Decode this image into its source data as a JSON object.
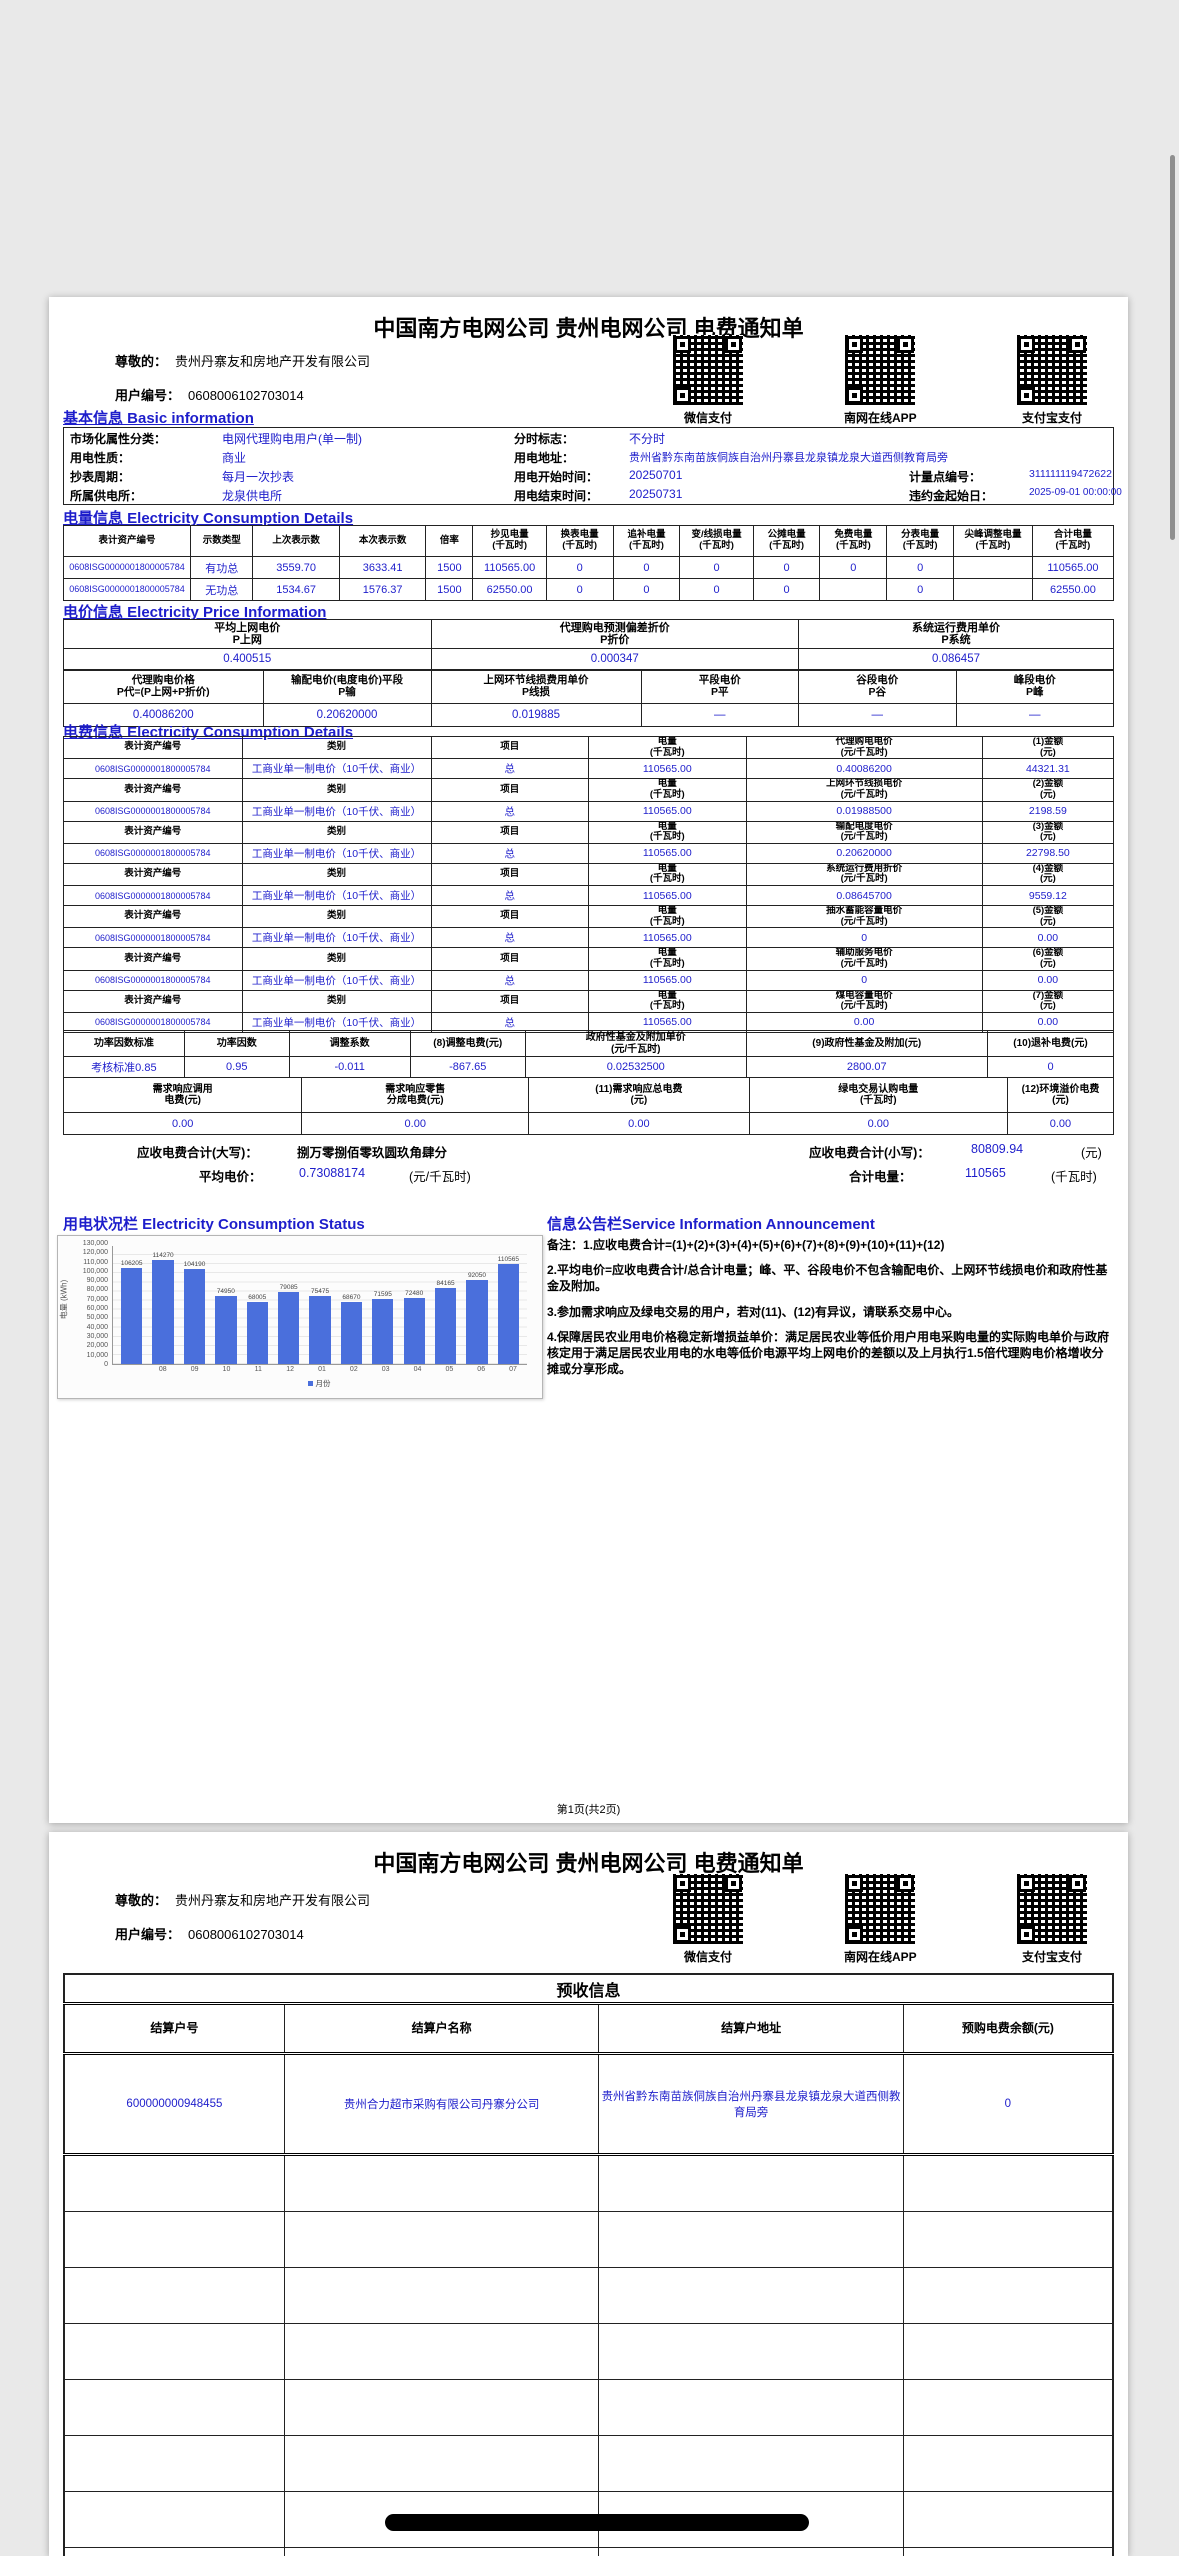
{
  "header": {
    "title": "中国南方电网公司 贵州电网公司 电费通知单",
    "dear_label": "尊敬的：",
    "customer_name": "贵州丹寨友和房地产开发有限公司",
    "user_no_label": "用户编号：",
    "user_no": "0608006102703014",
    "qr_labels": [
      "微信支付",
      "南网在线APP",
      "支付宝支付"
    ]
  },
  "basic_info": {
    "heading": "基本信息 Basic information",
    "market_label": "市场化属性分类：",
    "market": "电网代理购电用户(单一制)",
    "tou_label": "分时标志：",
    "tou": "不分时",
    "nature_label": "用电性质：",
    "nature": "商业",
    "addr_label": "用电地址：",
    "addr": "贵州省黔东南苗族侗族自治州丹寨县龙泉镇龙泉大道西侧教育局旁",
    "cycle_label": "抄表周期：",
    "cycle": "每月一次抄表",
    "start_label": "用电开始时间：",
    "start": "20250701",
    "point_label": "计量点编号：",
    "point": "311111119472622",
    "office_label": "所属供电所：",
    "office": "龙泉供电所",
    "end_label": "用电结束时间：",
    "end": "20250731",
    "penalty_label": "违约金起始日：",
    "penalty": "2025-09-01 00:00:00"
  },
  "energy_info": {
    "heading": "电量信息 Electricity Consumption Details",
    "headers": [
      "表计资产编号",
      "示数类型",
      "上次表示数",
      "本次表示数",
      "倍率",
      "抄见电量\n(千瓦时)",
      "换表电量\n(千瓦时)",
      "追补电量\n(千瓦时)",
      "变/线损电量\n(千瓦时)",
      "公摊电量\n(千瓦时)",
      "免费电量\n(千瓦时)",
      "分表电量\n(千瓦时)",
      "尖峰调整电量\n(千瓦时)",
      "合计电量\n(千瓦时)"
    ],
    "rows": [
      [
        "0608ISG0000001800005784",
        "有功总",
        "3559.70",
        "3633.41",
        "1500",
        "110565.00",
        "0",
        "0",
        "0",
        "0",
        "0",
        "0",
        "",
        "110565.00"
      ],
      [
        "0608ISG0000001800005784",
        "无功总",
        "1534.67",
        "1576.37",
        "1500",
        "62550.00",
        "0",
        "0",
        "0",
        "0",
        "",
        "0",
        "",
        "62550.00"
      ]
    ]
  },
  "price_info": {
    "heading": "电价信息 Electricity Price Information",
    "row1_headers": [
      "平均上网电价\nP上网",
      "代理购电预测偏差折价\nP折价",
      "系统运行费用单价\nP系统"
    ],
    "row1_values": [
      "0.400515",
      "0.000347",
      "0.086457"
    ],
    "row2_headers": [
      "代理购电价格\nP代=(P上网+P折价)",
      "输配电价(电度电价)平段\nP输",
      "上网环节线损费用单价\nP线损",
      "平段电价\nP平",
      "谷段电价\nP谷",
      "峰段电价\nP峰"
    ],
    "row2_values": [
      "0.40086200",
      "0.20620000",
      "0.019885",
      "—",
      "—",
      "—"
    ]
  },
  "fee_info": {
    "heading": "电费信息 Electricity Consumption Details",
    "cols": {
      "meter": "表计资产编号",
      "category": "类别",
      "item": "项目",
      "energy": "电量\n(千瓦时)"
    },
    "meter": "0608ISG0000001800005784",
    "category": "工商业单一制电价（10千伏、商业）",
    "item": "总",
    "energy": "110565.00",
    "blocks": [
      {
        "price_header": "代理购电电价\n(元/千瓦时)",
        "amount_header": "(1)金额\n(元)",
        "price": "0.40086200",
        "amount": "44321.31"
      },
      {
        "price_header": "上网环节线损电价\n(元/千瓦时)",
        "amount_header": "(2)金额\n(元)",
        "price": "0.01988500",
        "amount": "2198.59"
      },
      {
        "price_header": "输配电度电价\n(元/千瓦时)",
        "amount_header": "(3)金额\n(元)",
        "price": "0.20620000",
        "amount": "22798.50"
      },
      {
        "price_header": "系统运行费用折价\n(元/千瓦时)",
        "amount_header": "(4)金额\n(元)",
        "price": "0.08645700",
        "amount": "9559.12"
      },
      {
        "price_header": "抽水蓄能容量电价\n(元/千瓦时)",
        "amount_header": "(5)金额\n(元)",
        "price": "0",
        "amount": "0.00"
      },
      {
        "price_header": "辅助服务电价\n(元/千瓦时)",
        "amount_header": "(6)金额\n(元)",
        "price": "0",
        "amount": "0.00"
      },
      {
        "price_header": "煤电容量电价\n(元/千瓦时)",
        "amount_header": "(7)金额\n(元)",
        "price": "0.00",
        "amount": "0.00"
      }
    ],
    "summary1_headers": [
      "功率因数标准",
      "功率因数",
      "调整系数",
      "(8)调整电费(元)",
      "政府性基金及附加单价\n(元/千瓦时)",
      "(9)政府性基金及附加(元)",
      "(10)退补电费(元)"
    ],
    "summary1_values": [
      "考核标准0.85",
      "0.95",
      "-0.011",
      "-867.65",
      "0.02532500",
      "2800.07",
      "0"
    ],
    "summary2_headers": [
      "需求响应调用\n电费(元)",
      "需求响应零售\n分成电费(元)",
      "(11)需求响应总电费\n(元)",
      "绿电交易认购电量\n(千瓦时)",
      "(12)环境溢价电费\n(元)"
    ],
    "summary2_values": [
      "0.00",
      "0.00",
      "0.00",
      "0.00",
      "0.00"
    ],
    "total_cn_label": "应收电费合计(大写)：",
    "total_cn": "捌万零捌佰零玖圆玖角肆分",
    "total_num_label": "应收电费合计(小写)：",
    "total_num": "80809.94",
    "total_num_unit": "(元)",
    "avg_label": "平均电价：",
    "avg": "0.73088174",
    "avg_unit": "(元/千瓦时)",
    "sum_energy_label": "合计电量：",
    "sum_energy": "110565",
    "sum_energy_unit": "(千瓦时)"
  },
  "chart_heading": "用电状况栏 Electricity Consumption Status",
  "chart_data": {
    "type": "bar",
    "title": "用电状况栏 Electricity Consumption Status",
    "categories": [
      "",
      "08",
      "09",
      "10",
      "11",
      "12",
      "01",
      "02",
      "03",
      "04",
      "05",
      "06",
      "07"
    ],
    "values": [
      106205,
      114270,
      104190,
      74950,
      68005,
      79085,
      75475,
      68670,
      71595,
      72480,
      84165,
      92050,
      110565
    ],
    "xlabel": "月份",
    "ylabel": "电量 (kWh)",
    "ylim": [
      0,
      130000
    ],
    "yticks": [
      "130,000",
      "120,000",
      "110,000",
      "100,000",
      "90,000",
      "80,000",
      "70,000",
      "60,000",
      "50,000",
      "40,000",
      "30,000",
      "20,000",
      "10,000",
      "0"
    ],
    "grid": true,
    "legend_position": "bottom",
    "bar_color": "#4a6fdc"
  },
  "announcement": {
    "heading": "信息公告栏Service Information Announcement",
    "lines": [
      "备注：1.应收电费合计=(1)+(2)+(3)+(4)+(5)+(6)+(7)+(8)+(9)+(10)+(11)+(12)",
      "2.平均电价=应收电费合计/总合计电量；峰、平、谷段电价不包含输配电价、上网环节线损电价和政府性基金及附加。",
      "3.参加需求响应及绿电交易的用户，若对(11)、(12)有异议，请联系交易中心。",
      "4.保障居民农业用电价格稳定新增损益单价：满足居民农业等低价用户用电采购电量的实际购电单价与政府核定用于满足居民农业用电的水电等低价电源平均上网电价的差额以及上月执行1.5倍代理购电价格增收分摊或分享形成。"
    ]
  },
  "page1_footer": "第1页(共2页)",
  "prepay": {
    "title": "预收信息",
    "headers": [
      "结算户号",
      "结算户名称",
      "结算户地址",
      "预购电费余额(元)"
    ],
    "row": [
      "600000000948455",
      "贵州合力超市采购有限公司丹寨分公司",
      "贵州省黔东南苗族侗族自治州丹寨县龙泉镇龙泉大道西侧教育局旁",
      "0"
    ]
  },
  "colors": {
    "accent_blue": "#1d1dcb",
    "bar_blue": "#4a6fdc"
  }
}
